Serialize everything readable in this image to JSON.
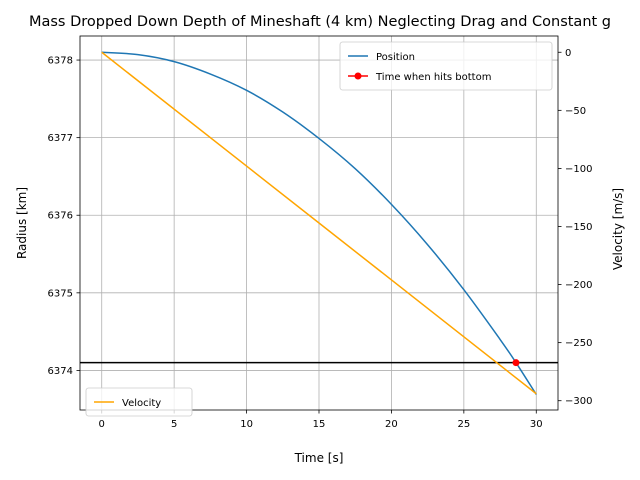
{
  "chart_data": {
    "type": "line",
    "title": "Mass Dropped Down Depth of Mineshaft (4 km) Neglecting Drag and Constant g",
    "xlabel": "Time [s]",
    "ylabel": "Radius [km]",
    "y2label": "Velocity [m/s]",
    "xlim": [
      -1.5,
      31.5
    ],
    "ylim": [
      6373.49,
      6378.31
    ],
    "y2lim": [
      -308,
      14
    ],
    "xticks": [
      0,
      5,
      10,
      15,
      20,
      25,
      30
    ],
    "yticks": [
      6374,
      6375,
      6376,
      6377,
      6378
    ],
    "y2ticks": [
      -300,
      -250,
      -200,
      -150,
      -100,
      -50,
      0
    ],
    "grid": true,
    "legend_left": {
      "placement": "upper right",
      "entries": [
        "Position",
        "Time when hits bottom"
      ]
    },
    "legend_right": {
      "placement": "lower left",
      "entries": [
        "Velocity"
      ]
    },
    "series": [
      {
        "name": "Position",
        "axis": "left",
        "color": "#1f77b4",
        "x": [
          0,
          2.5,
          5,
          7.5,
          10,
          12.5,
          15,
          17.5,
          20,
          22.5,
          25,
          27.5,
          28.6,
          30
        ],
        "y": [
          6378.1,
          6378.07,
          6377.98,
          6377.82,
          6377.61,
          6377.33,
          6376.99,
          6376.6,
          6376.14,
          6375.62,
          6375.04,
          6374.4,
          6374.1,
          6373.69
        ]
      },
      {
        "name": "Velocity",
        "axis": "right",
        "color": "#ffa500",
        "x": [
          0,
          30
        ],
        "y": [
          0,
          -294
        ]
      },
      {
        "name": "Time when hits bottom",
        "axis": "left",
        "type": "point",
        "color": "#ff0000",
        "x": [
          28.6
        ],
        "y": [
          6374.1
        ]
      }
    ],
    "hline": {
      "axis": "left",
      "y": 6374.1,
      "color": "#000000"
    }
  }
}
